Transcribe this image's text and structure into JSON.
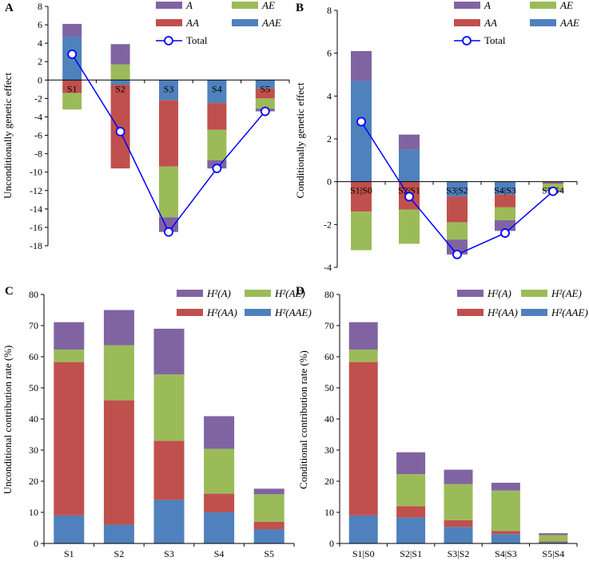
{
  "colors": {
    "A": "#8064A2",
    "AE": "#9BBB59",
    "AA": "#C0504D",
    "AAE": "#4F81BD",
    "total": "#0000FF",
    "axis": "#000000"
  },
  "chart_data": [
    {
      "id": "A",
      "panel_label": "A",
      "type": "bar",
      "stacked": true,
      "has_total_line": true,
      "ylabel": "Unconditionally genetic effect",
      "xlabel": "",
      "title": "",
      "categories": [
        "S1",
        "S2",
        "S3",
        "S4",
        "S5"
      ],
      "category_labels_on_axis": true,
      "ylim": [
        -18,
        8
      ],
      "yticks": [
        -18,
        -16,
        -14,
        -12,
        -10,
        -8,
        -6,
        -4,
        -2,
        0,
        2,
        4,
        6,
        8
      ],
      "series": [
        {
          "key": "AAE",
          "name": "AAE",
          "values": [
            4.7,
            -0.5,
            -2.2,
            -2.5,
            -0.9
          ]
        },
        {
          "key": "AA",
          "name": "AA",
          "values": [
            -1.4,
            -9.1,
            -7.2,
            -2.9,
            -1.1
          ]
        },
        {
          "key": "AE",
          "name": "AE",
          "values": [
            -1.8,
            1.7,
            -5.5,
            -3.3,
            -1.1
          ]
        },
        {
          "key": "A",
          "name": "A",
          "values": [
            1.4,
            2.2,
            -1.6,
            -0.9,
            -0.3
          ]
        }
      ],
      "total": {
        "name": "Total",
        "values": [
          2.8,
          -5.6,
          -16.5,
          -9.6,
          -3.4
        ]
      },
      "legend": {
        "entries": [
          "A",
          "AE",
          "AA",
          "AAE",
          "Total"
        ],
        "position": "top-right",
        "style": "italic"
      }
    },
    {
      "id": "B",
      "panel_label": "B",
      "type": "bar",
      "stacked": true,
      "has_total_line": true,
      "ylabel": "Conditionally genetic effect",
      "xlabel": "",
      "title": "",
      "categories": [
        "S1|S0",
        "S2|S1",
        "S3|S2",
        "S4|S3",
        "S5|S4"
      ],
      "category_labels_on_axis": true,
      "ylim": [
        -4,
        8
      ],
      "yticks": [
        -4,
        -2,
        0,
        2,
        4,
        6,
        8
      ],
      "series": [
        {
          "key": "AAE",
          "name": "AAE",
          "values": [
            4.7,
            1.5,
            -0.7,
            -0.6,
            -0.05
          ]
        },
        {
          "key": "AA",
          "name": "AA",
          "values": [
            -1.4,
            -1.3,
            -1.2,
            -0.6,
            -0.05
          ]
        },
        {
          "key": "AE",
          "name": "AE",
          "values": [
            -1.8,
            -1.6,
            -0.8,
            -0.6,
            -0.3
          ]
        },
        {
          "key": "A",
          "name": "A",
          "values": [
            1.4,
            0.7,
            -0.7,
            -0.5,
            -0.05
          ]
        }
      ],
      "total": {
        "name": "Total",
        "values": [
          2.8,
          -0.7,
          -3.4,
          -2.4,
          -0.45
        ]
      },
      "legend": {
        "entries": [
          "A",
          "AE",
          "AA",
          "AAE",
          "Total"
        ],
        "position": "top-right",
        "style": "italic"
      }
    },
    {
      "id": "C",
      "panel_label": "C",
      "type": "bar",
      "stacked": true,
      "has_total_line": false,
      "ylabel": "Unconditional contribution rate (%)",
      "xlabel": "",
      "title": "",
      "categories": [
        "S1",
        "S2",
        "S3",
        "S4",
        "S5"
      ],
      "category_labels_on_axis": false,
      "ylim": [
        0,
        80
      ],
      "yticks": [
        0,
        10,
        20,
        30,
        40,
        50,
        60,
        70,
        80
      ],
      "series": [
        {
          "key": "AAE",
          "name": "H²(AAE)",
          "values": [
            9.0,
            6.0,
            14.0,
            10.0,
            4.5
          ]
        },
        {
          "key": "AA",
          "name": "H²(AA)",
          "values": [
            49.3,
            40.0,
            19.0,
            6.0,
            2.5
          ]
        },
        {
          "key": "AE",
          "name": "H²(AE)",
          "values": [
            4.0,
            17.7,
            21.3,
            14.4,
            8.8
          ]
        },
        {
          "key": "A",
          "name": "H²(A)",
          "values": [
            8.8,
            11.3,
            14.7,
            10.5,
            1.8
          ]
        }
      ],
      "legend": {
        "entries": [
          "H²(A)",
          "H²(AE)",
          "H²(AA)",
          "H²(AAE)"
        ],
        "position": "top-right",
        "style": "italic"
      }
    },
    {
      "id": "D",
      "panel_label": "D",
      "type": "bar",
      "stacked": true,
      "has_total_line": false,
      "ylabel": "Conditional contribution rate (%)",
      "xlabel": "",
      "title": "",
      "categories": [
        "S1|S0",
        "S2|S1",
        "S3|S2",
        "S4|S3",
        "S5|S4"
      ],
      "category_labels_on_axis": false,
      "ylim": [
        0,
        80
      ],
      "yticks": [
        0,
        10,
        20,
        30,
        40,
        50,
        60,
        70,
        80
      ],
      "series": [
        {
          "key": "AAE",
          "name": "H²(AAE)",
          "values": [
            9.0,
            8.3,
            5.3,
            3.0,
            0.4
          ]
        },
        {
          "key": "AA",
          "name": "H²(AA)",
          "values": [
            49.3,
            3.7,
            2.2,
            1.0,
            0.3
          ]
        },
        {
          "key": "AE",
          "name": "H²(AE)",
          "values": [
            4.0,
            10.3,
            11.6,
            13.0,
            2.0
          ]
        },
        {
          "key": "A",
          "name": "H²(A)",
          "values": [
            8.8,
            7.0,
            4.6,
            2.5,
            0.6
          ]
        }
      ],
      "legend": {
        "entries": [
          "H²(A)",
          "H²(AE)",
          "H²(AA)",
          "H²(AAE)"
        ],
        "position": "top-right",
        "style": "italic"
      }
    }
  ]
}
